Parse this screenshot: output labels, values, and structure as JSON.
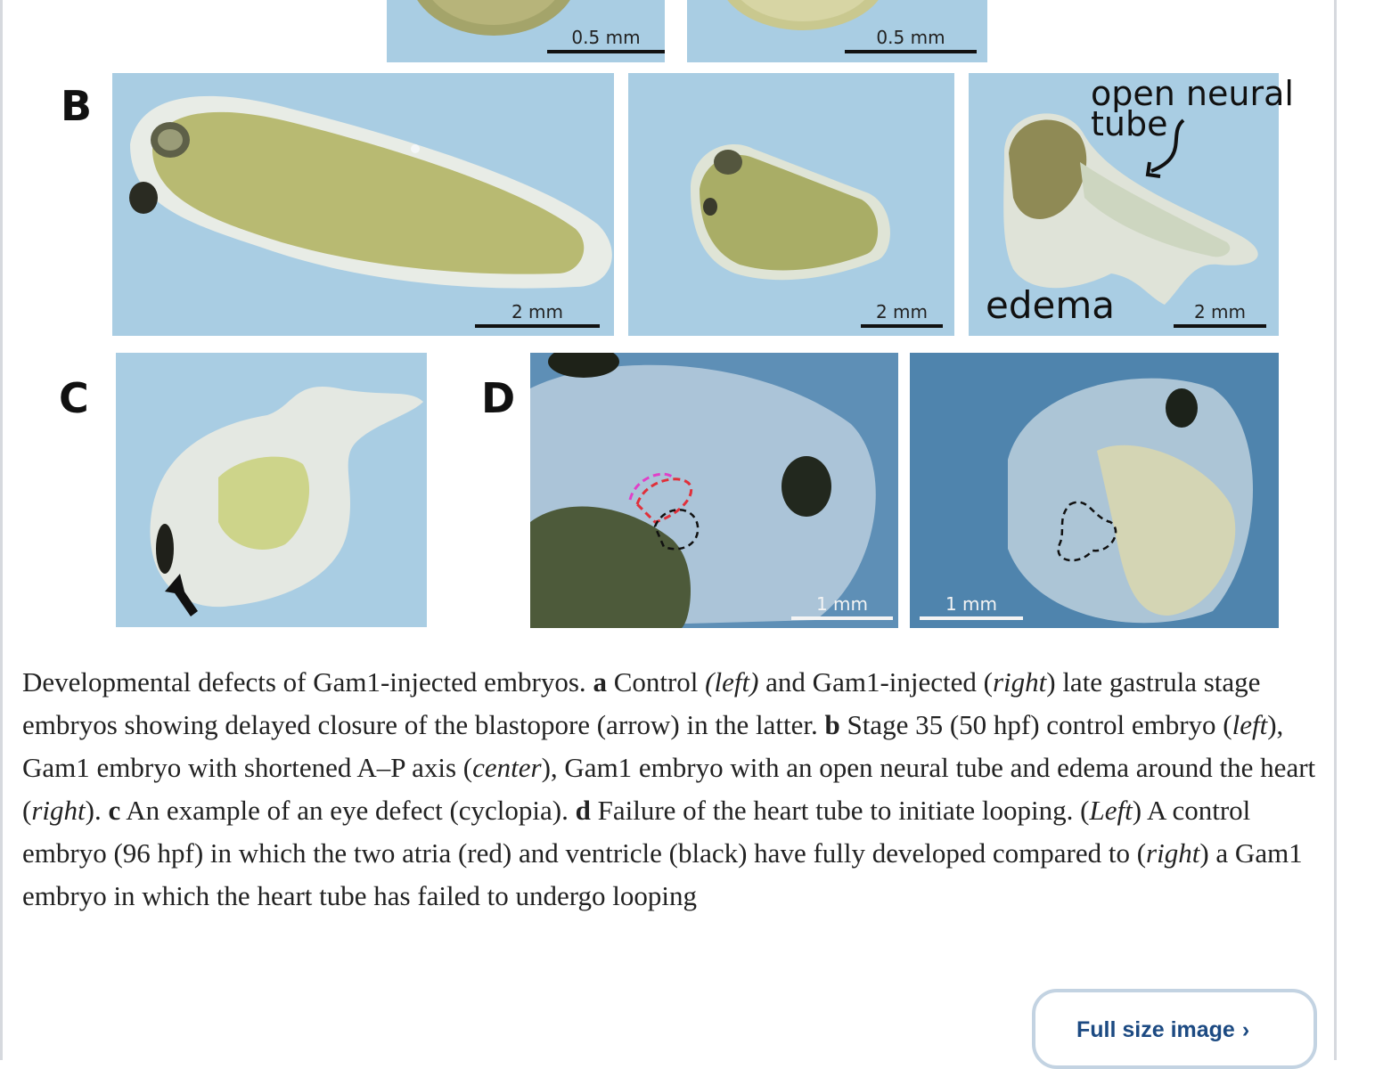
{
  "figure": {
    "labels": {
      "b": "B",
      "c": "C",
      "d": "D"
    },
    "scalebars": {
      "a_left": "0.5 mm",
      "a_right": "0.5 mm",
      "b_left": "2 mm",
      "b_center": "2 mm",
      "b_right": "2 mm",
      "d_left": "1 mm",
      "d_right": "1 mm"
    },
    "annotations": {
      "open_neural_tube_line1": "open neural",
      "open_neural_tube_line2": "tube",
      "edema": "edema"
    },
    "colors": {
      "panel_blue": "#a9cde3",
      "panel_d_blue": "#5a8db5",
      "embryo_green": "#b5b974",
      "atria_outline": "#e0303a",
      "ventricle_outline": "#111111",
      "caption_text": "#222222",
      "button_text": "#1c4a82",
      "button_border": "#c3d3e2"
    }
  },
  "caption": {
    "s1": "Developmental defects of Gam1-injected embryos. ",
    "a_label": "a",
    "s2": " Control ",
    "left1": "(left)",
    "s3": " and Gam1-injected (",
    "right1": "right",
    "s4": ") late gastrula stage embryos showing delayed closure of the blastopore (arrow) in the latter. ",
    "b_label": "b",
    "s5": " Stage 35 (50 hpf) control embryo (",
    "left2": "left",
    "s6": "), Gam1 embryo with shortened A–P axis (",
    "center": "center",
    "s7": "), Gam1 embryo with an open neural tube and edema around the heart (",
    "right2": "right",
    "s8": "). ",
    "c_label": "c",
    "s9": " An example of an eye defect (cyclopia). ",
    "d_label": "d",
    "s10": " Failure of the heart tube to initiate looping. (",
    "left3": "Left",
    "s11": ") A control embryo (96 hpf) in which the two atria (red) and ventricle (black) have fully developed compared to (",
    "right3": "right",
    "s12": ") a Gam1 embryo in which the heart tube has failed to undergo looping"
  },
  "actions": {
    "full_size_label": "Full size image",
    "full_size_chevron": "›"
  }
}
